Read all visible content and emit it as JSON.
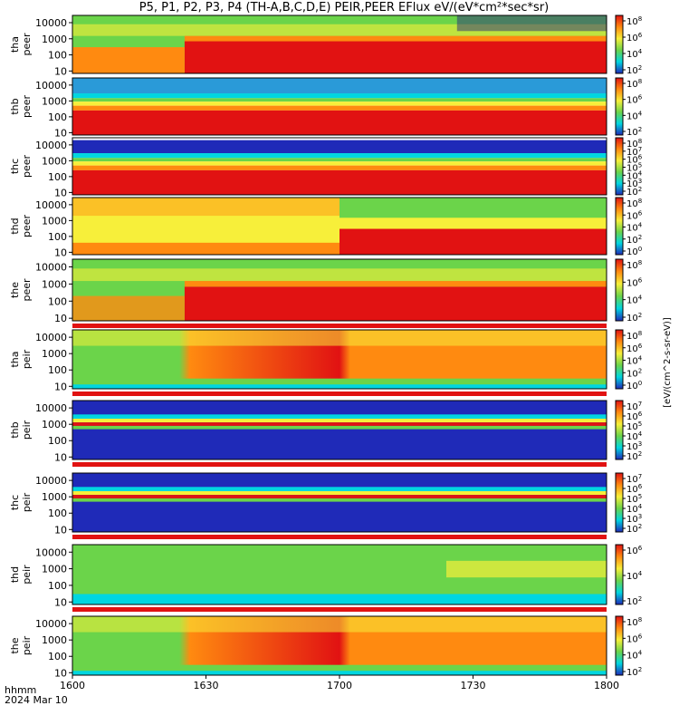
{
  "title": "P5, P1, P2, P3, P4 (TH-A,B,C,D,E) PEIR,PEER EFlux eV/(eV*cm²*sec*sr)",
  "footer": {
    "label": "hhmm",
    "date": "2024 Mar 10"
  },
  "colorbar_unit": "[eV/(cm^2-s-sr-eV)]",
  "colors": {
    "low": "#1f2ab8",
    "cyan": "#00d6e0",
    "green": "#6bd44a",
    "yellow": "#f7ef3a",
    "orange": "#ff8a10",
    "red": "#e11212"
  },
  "chart_data": {
    "type": "heatmap",
    "title": "P5, P1, P2, P3, P4 (TH-A,B,C,D,E) PEIR,PEER EFlux eV/(eV*cm²*sec*sr)",
    "x_ticks": [
      "1600",
      "1630",
      "1700",
      "1730",
      "1800"
    ],
    "x_range": [
      "16:00",
      "18:00"
    ],
    "panels": [
      {
        "l1": "tha",
        "l2": "peer",
        "y_ticks": [
          "10000",
          "1000",
          "100",
          "10"
        ],
        "cbar_ticks": [
          "10^8",
          "10^6",
          "10^4",
          "10^2"
        ],
        "style": "eA",
        "band": false
      },
      {
        "l1": "thb",
        "l2": "peer",
        "y_ticks": [
          "10000",
          "1000",
          "100",
          "10"
        ],
        "cbar_ticks": [
          "10^8",
          "10^6",
          "10^4",
          "10^2"
        ],
        "style": "eB",
        "band": false
      },
      {
        "l1": "thc",
        "l2": "peer",
        "y_ticks": [
          "10000",
          "1000",
          "100",
          "10"
        ],
        "cbar_ticks": [
          "10^8",
          "10^7",
          "10^6",
          "10^5",
          "10^4",
          "10^3",
          "10^2"
        ],
        "style": "eB",
        "band": false
      },
      {
        "l1": "thd",
        "l2": "peer",
        "y_ticks": [
          "10000",
          "1000",
          "100",
          "10"
        ],
        "cbar_ticks": [
          "10^8",
          "10^6",
          "10^4",
          "10^2",
          "10^0"
        ],
        "style": "eD",
        "band": false
      },
      {
        "l1": "the",
        "l2": "peer",
        "y_ticks": [
          "10000",
          "1000",
          "100",
          "10"
        ],
        "cbar_ticks": [
          "10^8",
          "10^6",
          "10^4",
          "10^2"
        ],
        "style": "eE",
        "band": true
      },
      {
        "l1": "tha",
        "l2": "peir",
        "y_ticks": [
          "10000",
          "1000",
          "100",
          "10"
        ],
        "cbar_ticks": [
          "10^8",
          "10^6",
          "10^4",
          "10^2",
          "10^0"
        ],
        "style": "iA",
        "band": true
      },
      {
        "l1": "thb",
        "l2": "peir",
        "y_ticks": [
          "10000",
          "1000",
          "100",
          "10"
        ],
        "cbar_ticks": [
          "10^7",
          "10^6",
          "10^5",
          "10^4",
          "10^3",
          "10^2"
        ],
        "style": "iB",
        "band": true
      },
      {
        "l1": "thc",
        "l2": "peir",
        "y_ticks": [
          "10000",
          "1000",
          "100",
          "10"
        ],
        "cbar_ticks": [
          "10^7",
          "10^6",
          "10^5",
          "10^4",
          "10^3",
          "10^2"
        ],
        "style": "iB",
        "band": true
      },
      {
        "l1": "thd",
        "l2": "peir",
        "y_ticks": [
          "10000",
          "1000",
          "100",
          "10"
        ],
        "cbar_ticks": [
          "10^6",
          "10^4",
          "10^2"
        ],
        "style": "iD",
        "band": true
      },
      {
        "l1": "the",
        "l2": "peir",
        "y_ticks": [
          "10000",
          "1000",
          "100",
          "10"
        ],
        "cbar_ticks": [
          "10^8",
          "10^6",
          "10^4",
          "10^2"
        ],
        "style": "iE",
        "band": false
      }
    ]
  }
}
